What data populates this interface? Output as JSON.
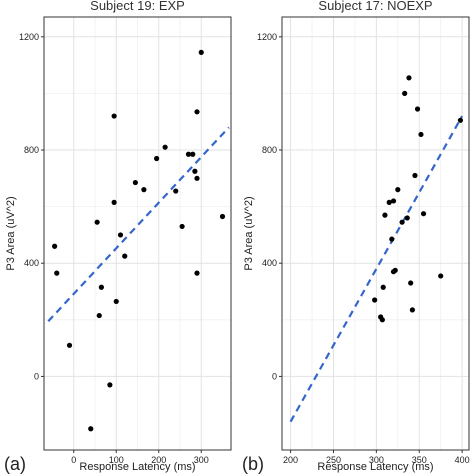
{
  "chart_data": [
    {
      "type": "scatter",
      "panel_label": "(a)",
      "title": "Subject 19: EXP",
      "xlabel": "Response Latency (ms)",
      "ylabel": "P3 Area (uV^2)",
      "xlim": [
        -70,
        370
      ],
      "ylim": [
        -260,
        1270
      ],
      "xticks": [
        0,
        100,
        200,
        300
      ],
      "yticks": [
        0,
        400,
        800,
        1200
      ],
      "grid": true,
      "trend_line": {
        "style": "dashed",
        "color": "#3366cc",
        "x": [
          -60,
          365
        ],
        "y": [
          195,
          880
        ]
      },
      "point_color": "#000000",
      "points": [
        {
          "x": -45,
          "y": 460
        },
        {
          "x": -40,
          "y": 365
        },
        {
          "x": -10,
          "y": 110
        },
        {
          "x": 40,
          "y": -185
        },
        {
          "x": 55,
          "y": 545
        },
        {
          "x": 60,
          "y": 215
        },
        {
          "x": 65,
          "y": 315
        },
        {
          "x": 85,
          "y": -30
        },
        {
          "x": 95,
          "y": 615
        },
        {
          "x": 95,
          "y": 920
        },
        {
          "x": 100,
          "y": 265
        },
        {
          "x": 110,
          "y": 500
        },
        {
          "x": 120,
          "y": 425
        },
        {
          "x": 145,
          "y": 685
        },
        {
          "x": 165,
          "y": 660
        },
        {
          "x": 195,
          "y": 770
        },
        {
          "x": 215,
          "y": 810
        },
        {
          "x": 240,
          "y": 655
        },
        {
          "x": 255,
          "y": 530
        },
        {
          "x": 270,
          "y": 785
        },
        {
          "x": 280,
          "y": 785
        },
        {
          "x": 285,
          "y": 725
        },
        {
          "x": 290,
          "y": 935
        },
        {
          "x": 290,
          "y": 365
        },
        {
          "x": 290,
          "y": 700
        },
        {
          "x": 300,
          "y": 1145
        },
        {
          "x": 350,
          "y": 565
        }
      ]
    },
    {
      "type": "scatter",
      "panel_label": "(b)",
      "title": "Subject 17: NOEXP",
      "xlabel": "Response Latency (ms)",
      "ylabel": "P3 Area (uV^2)",
      "xlim": [
        190,
        408
      ],
      "ylim": [
        -260,
        1270
      ],
      "xticks": [
        200,
        250,
        300,
        350,
        400
      ],
      "yticks": [
        0,
        400,
        800,
        1200
      ],
      "grid": true,
      "trend_line": {
        "style": "dashed",
        "color": "#3366cc",
        "x": [
          200,
          400
        ],
        "y": [
          -160,
          920
        ]
      },
      "point_color": "#000000",
      "points": [
        {
          "x": 298,
          "y": 270
        },
        {
          "x": 305,
          "y": 210
        },
        {
          "x": 307,
          "y": 200
        },
        {
          "x": 308,
          "y": 315
        },
        {
          "x": 310,
          "y": 570
        },
        {
          "x": 315,
          "y": 615
        },
        {
          "x": 318,
          "y": 485
        },
        {
          "x": 320,
          "y": 370
        },
        {
          "x": 320,
          "y": 620
        },
        {
          "x": 322,
          "y": 375
        },
        {
          "x": 325,
          "y": 660
        },
        {
          "x": 330,
          "y": 545
        },
        {
          "x": 333,
          "y": 1000
        },
        {
          "x": 336,
          "y": 560
        },
        {
          "x": 338,
          "y": 1055
        },
        {
          "x": 340,
          "y": 330
        },
        {
          "x": 342,
          "y": 235
        },
        {
          "x": 345,
          "y": 710
        },
        {
          "x": 348,
          "y": 945
        },
        {
          "x": 352,
          "y": 855
        },
        {
          "x": 355,
          "y": 575
        },
        {
          "x": 375,
          "y": 355
        },
        {
          "x": 398,
          "y": 905
        }
      ]
    }
  ]
}
